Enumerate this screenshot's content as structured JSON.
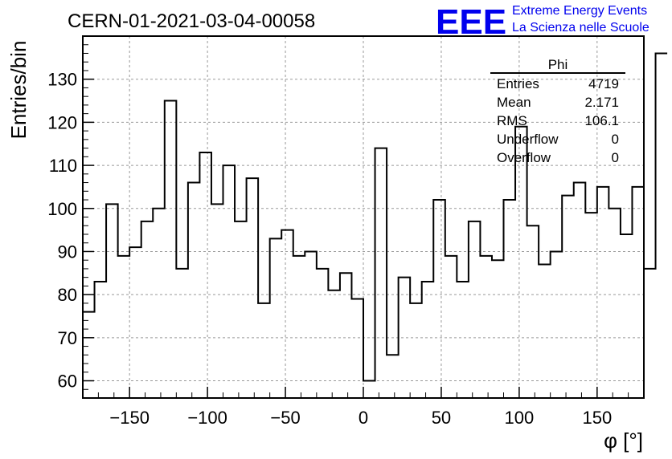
{
  "chart_data": {
    "type": "bar",
    "title": "CERN-01-2021-03-04-00058",
    "xlabel": "φ [°]",
    "ylabel": "Entries/bin",
    "xlim": [
      -180,
      180
    ],
    "ylim": [
      56,
      140
    ],
    "grid": true,
    "bin_width": 7.5,
    "x_ticks": [
      -150,
      -100,
      -50,
      0,
      50,
      100,
      150
    ],
    "y_ticks": [
      60,
      70,
      80,
      90,
      100,
      110,
      120,
      130
    ],
    "bin_edges_start": -180,
    "values": [
      76,
      83,
      101,
      89,
      91,
      97,
      100,
      125,
      86,
      106,
      113,
      101,
      110,
      97,
      107,
      78,
      93,
      95,
      89,
      90,
      86,
      81,
      85,
      79,
      60,
      114,
      66,
      84,
      78,
      83,
      102,
      89,
      83,
      97,
      89,
      88,
      102,
      119,
      96,
      87,
      90,
      103,
      106,
      99,
      105,
      100,
      94,
      105,
      86,
      136
    ]
  },
  "stats_box": {
    "name": "Phi",
    "rows": [
      {
        "label": "Entries",
        "value": "4719"
      },
      {
        "label": "Mean",
        "value": "2.171"
      },
      {
        "label": "RMS",
        "value": "106.1"
      },
      {
        "label": "Underflow",
        "value": "0"
      },
      {
        "label": "Overflow",
        "value": "0"
      }
    ]
  },
  "logo": {
    "mark": "EEE",
    "line1": "Extreme Energy Events",
    "line2": "La Scienza nelle Scuole",
    "color": "#0000ee"
  }
}
